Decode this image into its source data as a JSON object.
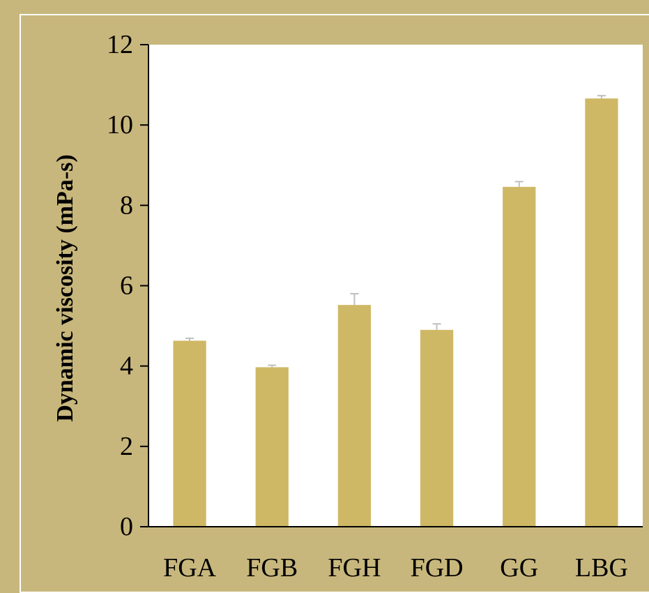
{
  "chart_data": {
    "type": "bar",
    "title": "",
    "xlabel": "",
    "ylabel": "Dynamic viscosity (mPa-s)",
    "categories": [
      "FGA",
      "FGB",
      "FGH",
      "FGD",
      "GG",
      "LBG"
    ],
    "values": [
      4.63,
      3.97,
      5.52,
      4.9,
      8.46,
      10.66
    ],
    "errors": [
      0.06,
      0.05,
      0.28,
      0.15,
      0.13,
      0.07
    ],
    "ylim": [
      0,
      12
    ],
    "yticks": [
      "0",
      "2",
      "4",
      "6",
      "8",
      "10",
      "12"
    ],
    "grid": false,
    "legend": "none",
    "colors": {
      "background": "#c8b77c",
      "plot_area": "#ffffff",
      "bar": "#cfb865",
      "error_bar": "#bfbfbf",
      "axis": "#000000",
      "frame": "#ffffff"
    }
  }
}
